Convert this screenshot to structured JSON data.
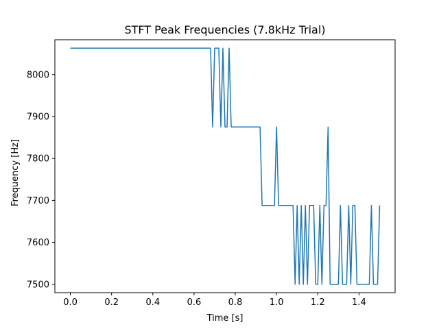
{
  "chart_data": {
    "type": "line",
    "title": "STFT Peak Frequencies (7.8kHz Trial)",
    "xlabel": "Time [s]",
    "ylabel": "Frequency [Hz]",
    "xlim": [
      -0.075,
      1.575
    ],
    "ylim": [
      7480,
      8083
    ],
    "x_ticks": [
      0.0,
      0.2,
      0.4,
      0.6,
      0.8,
      1.0,
      1.2,
      1.4
    ],
    "x_tick_labels": [
      "0.0",
      "0.2",
      "0.4",
      "0.6",
      "0.8",
      "1.0",
      "1.2",
      "1.4"
    ],
    "y_ticks": [
      7500,
      7600,
      7700,
      7800,
      7900,
      8000
    ],
    "y_tick_labels": [
      "7500",
      "7600",
      "7700",
      "7800",
      "7900",
      "8000"
    ],
    "grid": false,
    "series": [
      {
        "color": "#1f77b4",
        "x": [
          0.0,
          0.01,
          0.02,
          0.03,
          0.04,
          0.05,
          0.06,
          0.07,
          0.08,
          0.09,
          0.1,
          0.11,
          0.12,
          0.13,
          0.14,
          0.15,
          0.16,
          0.17,
          0.18,
          0.19,
          0.2,
          0.21,
          0.22,
          0.23,
          0.24,
          0.25,
          0.26,
          0.27,
          0.28,
          0.29,
          0.3,
          0.31,
          0.32,
          0.33,
          0.34,
          0.35,
          0.36,
          0.37,
          0.38,
          0.39,
          0.4,
          0.41,
          0.42,
          0.43,
          0.44,
          0.45,
          0.46,
          0.47,
          0.48,
          0.49,
          0.5,
          0.51,
          0.52,
          0.53,
          0.54,
          0.55,
          0.56,
          0.57,
          0.58,
          0.59,
          0.6,
          0.61,
          0.62,
          0.63,
          0.64,
          0.65,
          0.66,
          0.67,
          0.68,
          0.69,
          0.7,
          0.71,
          0.72,
          0.73,
          0.74,
          0.75,
          0.76,
          0.77,
          0.78,
          0.79,
          0.8,
          0.81,
          0.82,
          0.83,
          0.84,
          0.85,
          0.86,
          0.87,
          0.88,
          0.89,
          0.9,
          0.91,
          0.92,
          0.93,
          0.94,
          0.95,
          0.96,
          0.97,
          0.98,
          0.99,
          1.0,
          1.01,
          1.02,
          1.03,
          1.04,
          1.05,
          1.06,
          1.07,
          1.08,
          1.09,
          1.1,
          1.11,
          1.12,
          1.13,
          1.14,
          1.15,
          1.16,
          1.17,
          1.18,
          1.19,
          1.2,
          1.21,
          1.22,
          1.23,
          1.24,
          1.25,
          1.26,
          1.27,
          1.28,
          1.29,
          1.3,
          1.31,
          1.32,
          1.33,
          1.34,
          1.35,
          1.36,
          1.37,
          1.38,
          1.39,
          1.4,
          1.41,
          1.42,
          1.43,
          1.44,
          1.45,
          1.46,
          1.47,
          1.48,
          1.49,
          1.5
        ],
        "y": [
          8063,
          8063,
          8063,
          8063,
          8063,
          8063,
          8063,
          8063,
          8063,
          8063,
          8063,
          8063,
          8063,
          8063,
          8063,
          8063,
          8063,
          8063,
          8063,
          8063,
          8063,
          8063,
          8063,
          8063,
          8063,
          8063,
          8063,
          8063,
          8063,
          8063,
          8063,
          8063,
          8063,
          8063,
          8063,
          8063,
          8063,
          8063,
          8063,
          8063,
          8063,
          8063,
          8063,
          8063,
          8063,
          8063,
          8063,
          8063,
          8063,
          8063,
          8063,
          8063,
          8063,
          8063,
          8063,
          8063,
          8063,
          8063,
          8063,
          8063,
          8063,
          8063,
          8063,
          8063,
          8063,
          8063,
          8063,
          8063,
          8063,
          7875,
          8063,
          8063,
          8063,
          7875,
          8063,
          7875,
          7875,
          8063,
          7875,
          7875,
          7875,
          7875,
          7875,
          7875,
          7875,
          7875,
          7875,
          7875,
          7875,
          7875,
          7875,
          7875,
          7875,
          7688,
          7688,
          7688,
          7688,
          7688,
          7688,
          7688,
          7875,
          7688,
          7688,
          7688,
          7688,
          7688,
          7688,
          7688,
          7688,
          7500,
          7688,
          7500,
          7688,
          7500,
          7688,
          7500,
          7688,
          7688,
          7688,
          7500,
          7500,
          7688,
          7500,
          7688,
          7688,
          7875,
          7500,
          7500,
          7500,
          7500,
          7500,
          7688,
          7500,
          7500,
          7500,
          7688,
          7500,
          7688,
          7688,
          7500,
          7500,
          7500,
          7500,
          7500,
          7500,
          7500,
          7688,
          7500,
          7500,
          7500,
          7688
        ]
      }
    ]
  }
}
